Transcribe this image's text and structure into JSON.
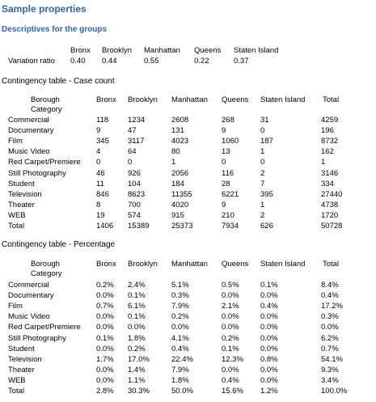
{
  "title": "Sample properties",
  "descriptives": {
    "heading": "Descriptives for the groups",
    "columns": [
      "Bronx",
      "Brooklyn",
      "Manhattan",
      "Queens",
      "Staten Island"
    ],
    "row_label": "Variation ratio",
    "values": [
      "0.40",
      "0.44",
      "0.55",
      "0.22",
      "0.37"
    ]
  },
  "count_table": {
    "heading": "Contingency table - Case count",
    "corner_line1": "Borough",
    "corner_line2": "Category",
    "columns": [
      "Bronx",
      "Brooklyn",
      "Manhattan",
      "Queens",
      "Staten Island",
      "Total"
    ],
    "rows": [
      {
        "label": "Commercial",
        "cells": [
          "118",
          "1234",
          "2608",
          "268",
          "31",
          "4259"
        ]
      },
      {
        "label": "Documentary",
        "cells": [
          "9",
          "47",
          "131",
          "9",
          "0",
          "196"
        ]
      },
      {
        "label": "Film",
        "cells": [
          "345",
          "3117",
          "4023",
          "1060",
          "187",
          "8732"
        ]
      },
      {
        "label": "Music Video",
        "cells": [
          "4",
          "64",
          "80",
          "13",
          "1",
          "162"
        ]
      },
      {
        "label": "Red Carpet/Premiere",
        "cells": [
          "0",
          "0",
          "1",
          "0",
          "0",
          "1"
        ]
      },
      {
        "label": "Still Photography",
        "cells": [
          "46",
          "926",
          "2056",
          "116",
          "2",
          "3146"
        ]
      },
      {
        "label": "Student",
        "cells": [
          "11",
          "104",
          "184",
          "28",
          "7",
          "334"
        ]
      },
      {
        "label": "Television",
        "cells": [
          "846",
          "8623",
          "11355",
          "6221",
          "395",
          "27440"
        ]
      },
      {
        "label": "Theater",
        "cells": [
          "8",
          "700",
          "4020",
          "9",
          "1",
          "4738"
        ]
      },
      {
        "label": "WEB",
        "cells": [
          "19",
          "574",
          "915",
          "210",
          "2",
          "1720"
        ]
      },
      {
        "label": "Total",
        "cells": [
          "1406",
          "15389",
          "25373",
          "7934",
          "626",
          "50728"
        ]
      }
    ]
  },
  "percent_table": {
    "heading": "Contingency table - Percentage",
    "corner_line1": "Borough",
    "corner_line2": "Category",
    "columns": [
      "Bronx",
      "Brooklyn",
      "Manhattan",
      "Queens",
      "Staten Island",
      "Total"
    ],
    "rows": [
      {
        "label": "Commercial",
        "cells": [
          "0.2%",
          "2.4%",
          "5.1%",
          "0.5%",
          "0.1%",
          "8.4%"
        ]
      },
      {
        "label": "Documentary",
        "cells": [
          "0.0%",
          "0.1%",
          "0.3%",
          "0.0%",
          "0.0%",
          "0.4%"
        ]
      },
      {
        "label": "Film",
        "cells": [
          "0.7%",
          "6.1%",
          "7.9%",
          "2.1%",
          "0.4%",
          "17.2%"
        ]
      },
      {
        "label": "Music Video",
        "cells": [
          "0.0%",
          "0.1%",
          "0.2%",
          "0.0%",
          "0.0%",
          "0.3%"
        ]
      },
      {
        "label": "Red Carpet/Premiere",
        "cells": [
          "0.0%",
          "0.0%",
          "0.0%",
          "0.0%",
          "0.0%",
          "0.0%"
        ]
      },
      {
        "label": "Still Photography",
        "cells": [
          "0.1%",
          "1.8%",
          "4.1%",
          "0.2%",
          "0.0%",
          "6.2%"
        ]
      },
      {
        "label": "Student",
        "cells": [
          "0.0%",
          "0.2%",
          "0.4%",
          "0.1%",
          "0.0%",
          "0.7%"
        ]
      },
      {
        "label": "Television",
        "cells": [
          "1.7%",
          "17.0%",
          "22.4%",
          "12.3%",
          "0.8%",
          "54.1%"
        ]
      },
      {
        "label": "Theater",
        "cells": [
          "0.0%",
          "1.4%",
          "7.9%",
          "0.0%",
          "0.0%",
          "9.3%"
        ]
      },
      {
        "label": "WEB",
        "cells": [
          "0.0%",
          "1.1%",
          "1.8%",
          "0.4%",
          "0.0%",
          "3.4%"
        ]
      },
      {
        "label": "Total",
        "cells": [
          "2.8%",
          "30.3%",
          "50.0%",
          "15.6%",
          "1.2%",
          "100.0%"
        ]
      }
    ]
  }
}
